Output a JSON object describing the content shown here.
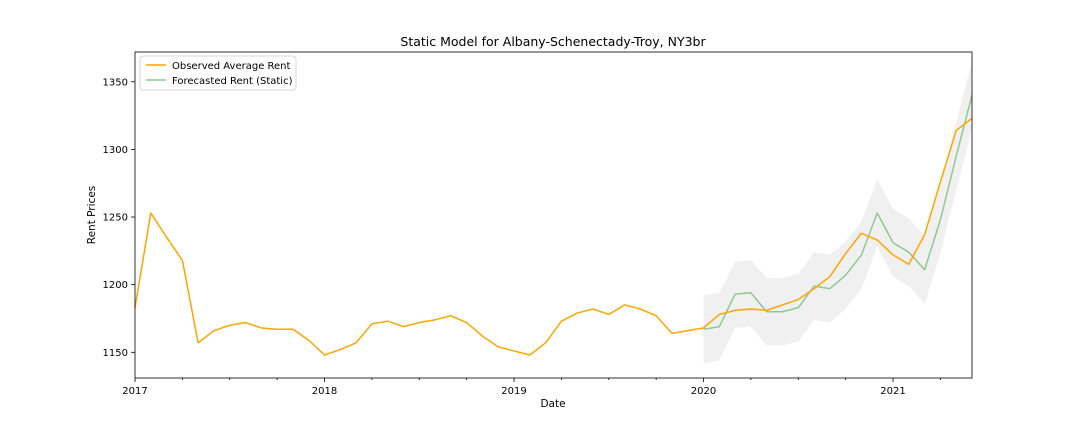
{
  "chart_data": {
    "type": "line",
    "title": "Static Model for Albany-Schenectady-Troy, NY3br",
    "xlabel": "Date",
    "ylabel": "Rent Prices",
    "xlim": [
      "2017-01",
      "2021-06"
    ],
    "ylim": [
      1131,
      1372
    ],
    "x_major_ticks": [
      {
        "date": "2017-01",
        "label": "2017"
      },
      {
        "date": "2018-01",
        "label": "2018"
      },
      {
        "date": "2019-01",
        "label": "2019"
      },
      {
        "date": "2020-01",
        "label": "2020"
      },
      {
        "date": "2021-01",
        "label": "2021"
      }
    ],
    "y_ticks": [
      {
        "value": 1150,
        "label": "1150"
      },
      {
        "value": 1200,
        "label": "1200"
      },
      {
        "value": 1250,
        "label": "1250"
      },
      {
        "value": 1300,
        "label": "1300"
      },
      {
        "value": 1350,
        "label": "1350"
      }
    ],
    "legend_position": "top-left",
    "grid": false,
    "series": [
      {
        "name": "Observed Average Rent",
        "color": "#ffa500",
        "points": [
          [
            "2017-01",
            1183
          ],
          [
            "2017-02",
            1253
          ],
          [
            "2017-03",
            1235
          ],
          [
            "2017-04",
            1218
          ],
          [
            "2017-05",
            1157
          ],
          [
            "2017-06",
            1166
          ],
          [
            "2017-07",
            1170
          ],
          [
            "2017-08",
            1172
          ],
          [
            "2017-09",
            1168
          ],
          [
            "2017-10",
            1167
          ],
          [
            "2017-11",
            1167
          ],
          [
            "2017-12",
            1159
          ],
          [
            "2018-01",
            1148
          ],
          [
            "2018-02",
            1152
          ],
          [
            "2018-03",
            1157
          ],
          [
            "2018-04",
            1171
          ],
          [
            "2018-05",
            1173
          ],
          [
            "2018-06",
            1169
          ],
          [
            "2018-07",
            1172
          ],
          [
            "2018-08",
            1174
          ],
          [
            "2018-09",
            1177
          ],
          [
            "2018-10",
            1172
          ],
          [
            "2018-11",
            1162
          ],
          [
            "2018-12",
            1154
          ],
          [
            "2019-01",
            1151
          ],
          [
            "2019-02",
            1148
          ],
          [
            "2019-03",
            1157
          ],
          [
            "2019-04",
            1173
          ],
          [
            "2019-05",
            1179
          ],
          [
            "2019-06",
            1182
          ],
          [
            "2019-07",
            1178
          ],
          [
            "2019-08",
            1185
          ],
          [
            "2019-09",
            1182
          ],
          [
            "2019-10",
            1177
          ],
          [
            "2019-11",
            1164
          ],
          [
            "2019-12",
            1166
          ],
          [
            "2020-01",
            1168
          ],
          [
            "2020-02",
            1178
          ],
          [
            "2020-03",
            1181
          ],
          [
            "2020-04",
            1182
          ],
          [
            "2020-05",
            1181
          ],
          [
            "2020-06",
            1185
          ],
          [
            "2020-07",
            1189
          ],
          [
            "2020-08",
            1197
          ],
          [
            "2020-09",
            1206
          ],
          [
            "2020-10",
            1223
          ],
          [
            "2020-11",
            1238
          ],
          [
            "2020-12",
            1233
          ],
          [
            "2021-01",
            1222
          ],
          [
            "2021-02",
            1215
          ],
          [
            "2021-03",
            1237
          ],
          [
            "2021-04",
            1276
          ],
          [
            "2021-05",
            1314
          ],
          [
            "2021-06",
            1323
          ]
        ]
      },
      {
        "name": "Forecasted Rent (Static)",
        "color": "#8fc98f",
        "points": [
          [
            "2020-01",
            1167
          ],
          [
            "2020-02",
            1169
          ],
          [
            "2020-03",
            1193
          ],
          [
            "2020-04",
            1194
          ],
          [
            "2020-05",
            1180
          ],
          [
            "2020-06",
            1180
          ],
          [
            "2020-07",
            1183
          ],
          [
            "2020-08",
            1199
          ],
          [
            "2020-09",
            1197
          ],
          [
            "2020-10",
            1207
          ],
          [
            "2020-11",
            1222
          ],
          [
            "2020-12",
            1253
          ],
          [
            "2021-01",
            1231
          ],
          [
            "2021-02",
            1224
          ],
          [
            "2021-03",
            1211
          ],
          [
            "2021-04",
            1248
          ],
          [
            "2021-05",
            1295
          ],
          [
            "2021-06",
            1340
          ]
        ]
      }
    ],
    "confidence_band": {
      "color": "#d3d3d3",
      "upper": [
        [
          "2020-01",
          1192
        ],
        [
          "2020-02",
          1194
        ],
        [
          "2020-03",
          1217
        ],
        [
          "2020-04",
          1218
        ],
        [
          "2020-05",
          1205
        ],
        [
          "2020-06",
          1205
        ],
        [
          "2020-07",
          1208
        ],
        [
          "2020-08",
          1224
        ],
        [
          "2020-09",
          1222
        ],
        [
          "2020-10",
          1232
        ],
        [
          "2020-11",
          1247
        ],
        [
          "2020-12",
          1278
        ],
        [
          "2021-01",
          1256
        ],
        [
          "2021-02",
          1249
        ],
        [
          "2021-03",
          1236
        ],
        [
          "2021-04",
          1273
        ],
        [
          "2021-05",
          1320
        ],
        [
          "2021-06",
          1365
        ]
      ],
      "lower": [
        [
          "2020-01",
          1142
        ],
        [
          "2020-02",
          1144
        ],
        [
          "2020-03",
          1168
        ],
        [
          "2020-04",
          1169
        ],
        [
          "2020-05",
          1155
        ],
        [
          "2020-06",
          1155
        ],
        [
          "2020-07",
          1158
        ],
        [
          "2020-08",
          1174
        ],
        [
          "2020-09",
          1172
        ],
        [
          "2020-10",
          1182
        ],
        [
          "2020-11",
          1197
        ],
        [
          "2020-12",
          1228
        ],
        [
          "2021-01",
          1206
        ],
        [
          "2021-02",
          1199
        ],
        [
          "2021-03",
          1186
        ],
        [
          "2021-04",
          1223
        ],
        [
          "2021-05",
          1270
        ],
        [
          "2021-06",
          1315
        ]
      ]
    }
  }
}
